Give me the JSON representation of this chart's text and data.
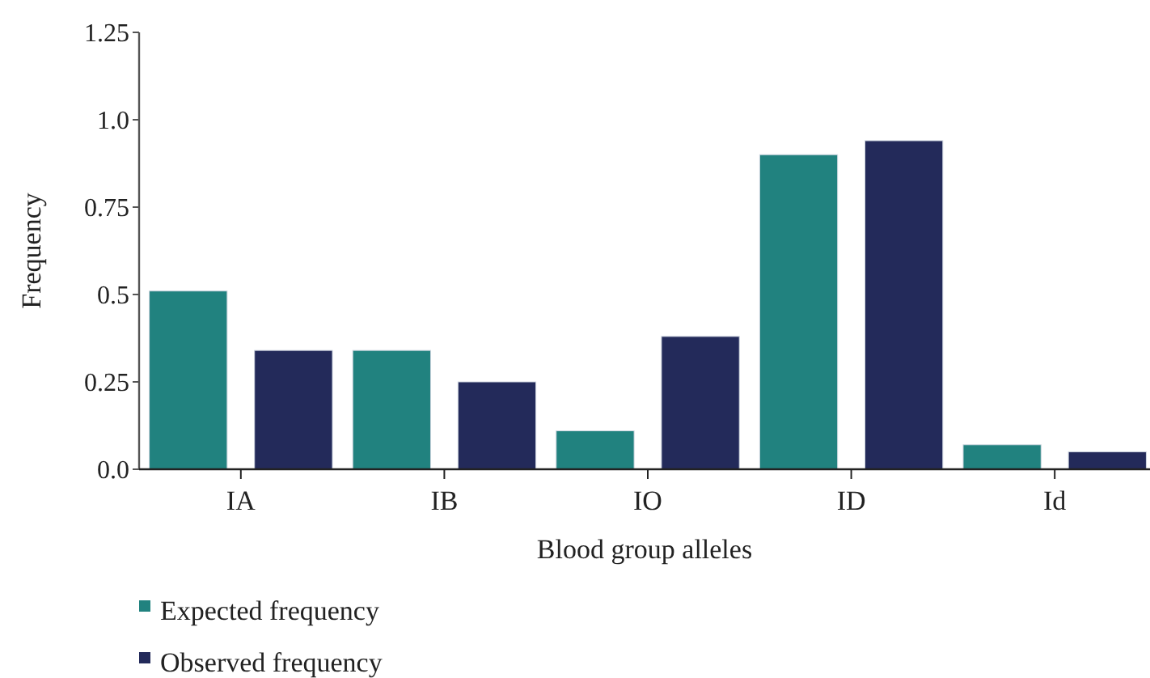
{
  "chart_data": {
    "type": "bar",
    "xlabel": "Blood group alleles",
    "ylabel": "Frequency",
    "categories": [
      "IA",
      "IB",
      "IO",
      "ID",
      "Id"
    ],
    "series": [
      {
        "name": "Expected frequency",
        "color": "#21827f",
        "values": [
          0.51,
          0.34,
          0.11,
          0.9,
          0.07
        ]
      },
      {
        "name": "Observed frequency",
        "color": "#232a5a",
        "values": [
          0.34,
          0.25,
          0.38,
          0.94,
          0.05
        ]
      }
    ],
    "ylim": [
      0,
      1.25
    ],
    "yticks": [
      {
        "value": 0,
        "label": "0.0"
      },
      {
        "value": 0.25,
        "label": "0.25"
      },
      {
        "value": 0.5,
        "label": "0.5"
      },
      {
        "value": 0.75,
        "label": "0.75"
      },
      {
        "value": 1.0,
        "label": "1.0"
      },
      {
        "value": 1.25,
        "label": "1.25"
      }
    ],
    "legend": "bottom left",
    "grid": false
  }
}
